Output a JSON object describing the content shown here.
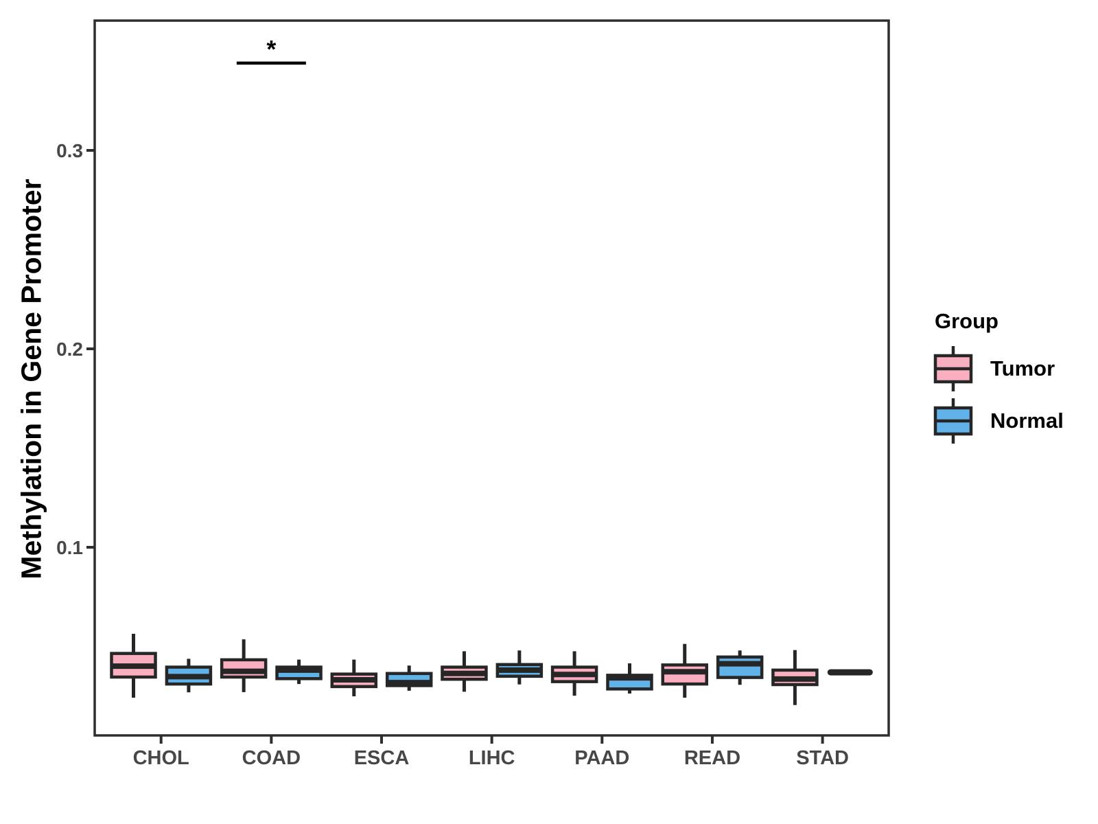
{
  "chart_data": {
    "type": "grouped_boxplot",
    "title": "",
    "xlabel": "",
    "ylabel": "Methylation in Gene Promoter",
    "categories": [
      "CHOL",
      "COAD",
      "ESCA",
      "LIHC",
      "PAAD",
      "READ",
      "STAD"
    ],
    "series": [
      {
        "name": "Tumor",
        "color": "#F9AFBF",
        "boxes": [
          {
            "min": 0.0242,
            "q1": 0.0346,
            "median": 0.0401,
            "q3": 0.0465,
            "max": 0.0564
          },
          {
            "min": 0.027,
            "q1": 0.0346,
            "median": 0.0375,
            "q3": 0.0433,
            "max": 0.0536
          },
          {
            "min": 0.0249,
            "q1": 0.0298,
            "median": 0.0332,
            "q3": 0.0361,
            "max": 0.0434
          },
          {
            "min": 0.0272,
            "q1": 0.0335,
            "median": 0.0364,
            "q3": 0.0396,
            "max": 0.0476
          },
          {
            "min": 0.0252,
            "q1": 0.0323,
            "median": 0.0359,
            "q3": 0.0396,
            "max": 0.0476
          },
          {
            "min": 0.0242,
            "q1": 0.0311,
            "median": 0.0373,
            "q3": 0.0407,
            "max": 0.0513
          },
          {
            "min": 0.0205,
            "q1": 0.0308,
            "median": 0.0336,
            "q3": 0.0381,
            "max": 0.0482
          }
        ]
      },
      {
        "name": "Normal",
        "color": "#61B2E8",
        "boxes": [
          {
            "min": 0.0269,
            "q1": 0.0311,
            "median": 0.0348,
            "q3": 0.0396,
            "max": 0.0438
          },
          {
            "min": 0.0311,
            "q1": 0.0338,
            "median": 0.0381,
            "q3": 0.0396,
            "max": 0.0434
          },
          {
            "min": 0.0277,
            "q1": 0.0303,
            "median": 0.0318,
            "q3": 0.0364,
            "max": 0.0404
          },
          {
            "min": 0.0309,
            "q1": 0.035,
            "median": 0.0381,
            "q3": 0.0409,
            "max": 0.048
          },
          {
            "min": 0.0263,
            "q1": 0.0286,
            "median": 0.0342,
            "q3": 0.0355,
            "max": 0.0415
          },
          {
            "min": 0.0307,
            "q1": 0.0344,
            "median": 0.0413,
            "q3": 0.0447,
            "max": 0.048
          },
          {
            "min": 0.037,
            "q1": 0.037,
            "median": 0.037,
            "q3": 0.037,
            "max": 0.037
          }
        ]
      }
    ],
    "y_ticks": [
      {
        "value": 0.1,
        "label": "0.1"
      },
      {
        "value": 0.2,
        "label": "0.2"
      },
      {
        "value": 0.3,
        "label": "0.3"
      }
    ],
    "ylim": [
      0.0,
      0.365
    ],
    "grid": false,
    "legend_position": "right",
    "significance": [
      {
        "category": "COAD",
        "label": "*",
        "y": 0.344
      }
    ]
  },
  "legend": {
    "title": "Group",
    "items": [
      {
        "label": "Tumor",
        "color": "#F9AFBF"
      },
      {
        "label": "Normal",
        "color": "#61B2E8"
      }
    ]
  },
  "colors": {
    "box_outline": "#262626",
    "axis_text": "#474747",
    "panel_border": "#2e2e2e"
  }
}
